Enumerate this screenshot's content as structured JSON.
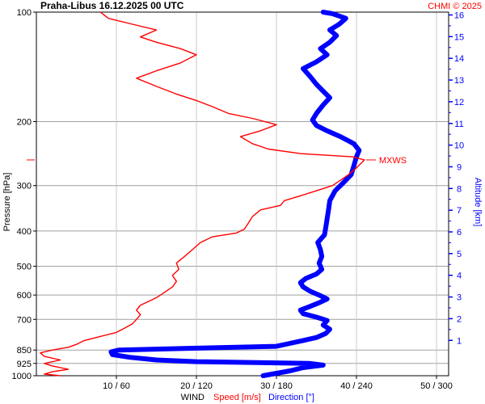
{
  "chart_data": {
    "type": "line",
    "title": "Praha-Libus    16.12.2025 00 UTC",
    "credit": "CHMI © 2025",
    "y_axis": {
      "label": "Pressure [hPa]",
      "scale": "log",
      "range": [
        1000,
        100
      ],
      "ticks": [
        "100",
        "200",
        "300",
        "400",
        "500",
        "600",
        "700",
        "850",
        "925",
        "1000"
      ]
    },
    "x_axis": {
      "label_prefix": "WIND",
      "label_speed": "Speed [m/s]",
      "label_direction": "Direction [°]",
      "speed_range": [
        0,
        50
      ],
      "direction_range": [
        0,
        300
      ],
      "ticks": [
        "10 / 60",
        "20 / 120",
        "30 / 180",
        "40 / 240",
        "50 / 300"
      ]
    },
    "right_axis": {
      "label": "Altitude [km]",
      "ticks": [
        "1",
        "2",
        "3",
        "4",
        "5",
        "6",
        "7",
        "8",
        "9",
        "10",
        "11",
        "12",
        "13",
        "14",
        "15",
        "16"
      ]
    },
    "annotations": [
      {
        "text": "MXWS",
        "pressure": 255,
        "speed": 41
      }
    ],
    "grid": true,
    "series": [
      {
        "name": "Speed [m/s]",
        "color": "#ff0000",
        "units": "m/s",
        "points": [
          {
            "p": 1000,
            "v": 3
          },
          {
            "p": 990,
            "v": 1
          },
          {
            "p": 975,
            "v": 2
          },
          {
            "p": 960,
            "v": 4
          },
          {
            "p": 940,
            "v": 2
          },
          {
            "p": 925,
            "v": 1
          },
          {
            "p": 905,
            "v": 3
          },
          {
            "p": 885,
            "v": 1
          },
          {
            "p": 865,
            "v": 0.5
          },
          {
            "p": 850,
            "v": 2
          },
          {
            "p": 835,
            "v": 4
          },
          {
            "p": 820,
            "v": 5
          },
          {
            "p": 800,
            "v": 6
          },
          {
            "p": 780,
            "v": 8
          },
          {
            "p": 760,
            "v": 10
          },
          {
            "p": 740,
            "v": 11
          },
          {
            "p": 720,
            "v": 12
          },
          {
            "p": 700,
            "v": 12.5
          },
          {
            "p": 680,
            "v": 13
          },
          {
            "p": 660,
            "v": 12.5
          },
          {
            "p": 640,
            "v": 13
          },
          {
            "p": 625,
            "v": 14
          },
          {
            "p": 610,
            "v": 15
          },
          {
            "p": 590,
            "v": 16
          },
          {
            "p": 570,
            "v": 17
          },
          {
            "p": 550,
            "v": 17.5
          },
          {
            "p": 530,
            "v": 17
          },
          {
            "p": 510,
            "v": 17.8
          },
          {
            "p": 490,
            "v": 17.5
          },
          {
            "p": 470,
            "v": 18.5
          },
          {
            "p": 450,
            "v": 19.5
          },
          {
            "p": 430,
            "v": 20.5
          },
          {
            "p": 415,
            "v": 22
          },
          {
            "p": 405,
            "v": 25
          },
          {
            "p": 395,
            "v": 26
          },
          {
            "p": 380,
            "v": 26.5
          },
          {
            "p": 365,
            "v": 27
          },
          {
            "p": 350,
            "v": 28
          },
          {
            "p": 340,
            "v": 30.5
          },
          {
            "p": 330,
            "v": 31
          },
          {
            "p": 320,
            "v": 33
          },
          {
            "p": 310,
            "v": 35
          },
          {
            "p": 300,
            "v": 37
          },
          {
            "p": 290,
            "v": 38
          },
          {
            "p": 280,
            "v": 39
          },
          {
            "p": 268,
            "v": 40
          },
          {
            "p": 255,
            "v": 41
          },
          {
            "p": 250,
            "v": 39.5
          },
          {
            "p": 245,
            "v": 33
          },
          {
            "p": 238,
            "v": 29
          },
          {
            "p": 230,
            "v": 27
          },
          {
            "p": 220,
            "v": 25.5
          },
          {
            "p": 212,
            "v": 28
          },
          {
            "p": 204,
            "v": 30
          },
          {
            "p": 196,
            "v": 27
          },
          {
            "p": 190,
            "v": 24
          },
          {
            "p": 182,
            "v": 22
          },
          {
            "p": 175,
            "v": 20
          },
          {
            "p": 168,
            "v": 17.5
          },
          {
            "p": 160,
            "v": 15
          },
          {
            "p": 152,
            "v": 12.5
          },
          {
            "p": 145,
            "v": 15
          },
          {
            "p": 138,
            "v": 18
          },
          {
            "p": 131,
            "v": 20
          },
          {
            "p": 126,
            "v": 18
          },
          {
            "p": 121,
            "v": 15
          },
          {
            "p": 117,
            "v": 13
          },
          {
            "p": 112,
            "v": 15
          },
          {
            "p": 108,
            "v": 12
          },
          {
            "p": 104,
            "v": 9
          },
          {
            "p": 100,
            "v": 8
          }
        ]
      },
      {
        "name": "Direction [°]",
        "color": "#0000ff",
        "units": "°",
        "points": [
          {
            "p": 1000,
            "d": 170
          },
          {
            "p": 985,
            "d": 180
          },
          {
            "p": 970,
            "d": 190
          },
          {
            "p": 950,
            "d": 200
          },
          {
            "p": 935,
            "d": 215
          },
          {
            "p": 925,
            "d": 205
          },
          {
            "p": 915,
            "d": 120
          },
          {
            "p": 905,
            "d": 90
          },
          {
            "p": 890,
            "d": 70
          },
          {
            "p": 875,
            "d": 57
          },
          {
            "p": 860,
            "d": 56
          },
          {
            "p": 850,
            "d": 62
          },
          {
            "p": 840,
            "d": 120
          },
          {
            "p": 830,
            "d": 180
          },
          {
            "p": 815,
            "d": 190
          },
          {
            "p": 800,
            "d": 200
          },
          {
            "p": 785,
            "d": 210
          },
          {
            "p": 765,
            "d": 217
          },
          {
            "p": 745,
            "d": 220
          },
          {
            "p": 725,
            "d": 215
          },
          {
            "p": 705,
            "d": 218
          },
          {
            "p": 690,
            "d": 210
          },
          {
            "p": 675,
            "d": 200
          },
          {
            "p": 660,
            "d": 198
          },
          {
            "p": 645,
            "d": 205
          },
          {
            "p": 630,
            "d": 212
          },
          {
            "p": 615,
            "d": 218
          },
          {
            "p": 600,
            "d": 212
          },
          {
            "p": 585,
            "d": 205
          },
          {
            "p": 570,
            "d": 200
          },
          {
            "p": 555,
            "d": 198
          },
          {
            "p": 540,
            "d": 202
          },
          {
            "p": 525,
            "d": 210
          },
          {
            "p": 510,
            "d": 214
          },
          {
            "p": 490,
            "d": 212
          },
          {
            "p": 470,
            "d": 214
          },
          {
            "p": 450,
            "d": 213
          },
          {
            "p": 430,
            "d": 211
          },
          {
            "p": 410,
            "d": 216
          },
          {
            "p": 390,
            "d": 217
          },
          {
            "p": 370,
            "d": 218
          },
          {
            "p": 350,
            "d": 219
          },
          {
            "p": 330,
            "d": 220
          },
          {
            "p": 310,
            "d": 224
          },
          {
            "p": 295,
            "d": 230
          },
          {
            "p": 280,
            "d": 236
          },
          {
            "p": 265,
            "d": 238
          },
          {
            "p": 250,
            "d": 240
          },
          {
            "p": 240,
            "d": 242
          },
          {
            "p": 230,
            "d": 238
          },
          {
            "p": 220,
            "d": 228
          },
          {
            "p": 212,
            "d": 218
          },
          {
            "p": 205,
            "d": 210
          },
          {
            "p": 198,
            "d": 207
          },
          {
            "p": 190,
            "d": 210
          },
          {
            "p": 180,
            "d": 215
          },
          {
            "p": 172,
            "d": 220
          },
          {
            "p": 165,
            "d": 215
          },
          {
            "p": 158,
            "d": 210
          },
          {
            "p": 150,
            "d": 205
          },
          {
            "p": 143,
            "d": 200
          },
          {
            "p": 137,
            "d": 210
          },
          {
            "p": 131,
            "d": 218
          },
          {
            "p": 126,
            "d": 213
          },
          {
            "p": 121,
            "d": 220
          },
          {
            "p": 116,
            "d": 225
          },
          {
            "p": 112,
            "d": 220
          },
          {
            "p": 108,
            "d": 227
          },
          {
            "p": 104,
            "d": 232
          },
          {
            "p": 101,
            "d": 222
          },
          {
            "p": 100,
            "d": 215
          }
        ]
      }
    ]
  }
}
